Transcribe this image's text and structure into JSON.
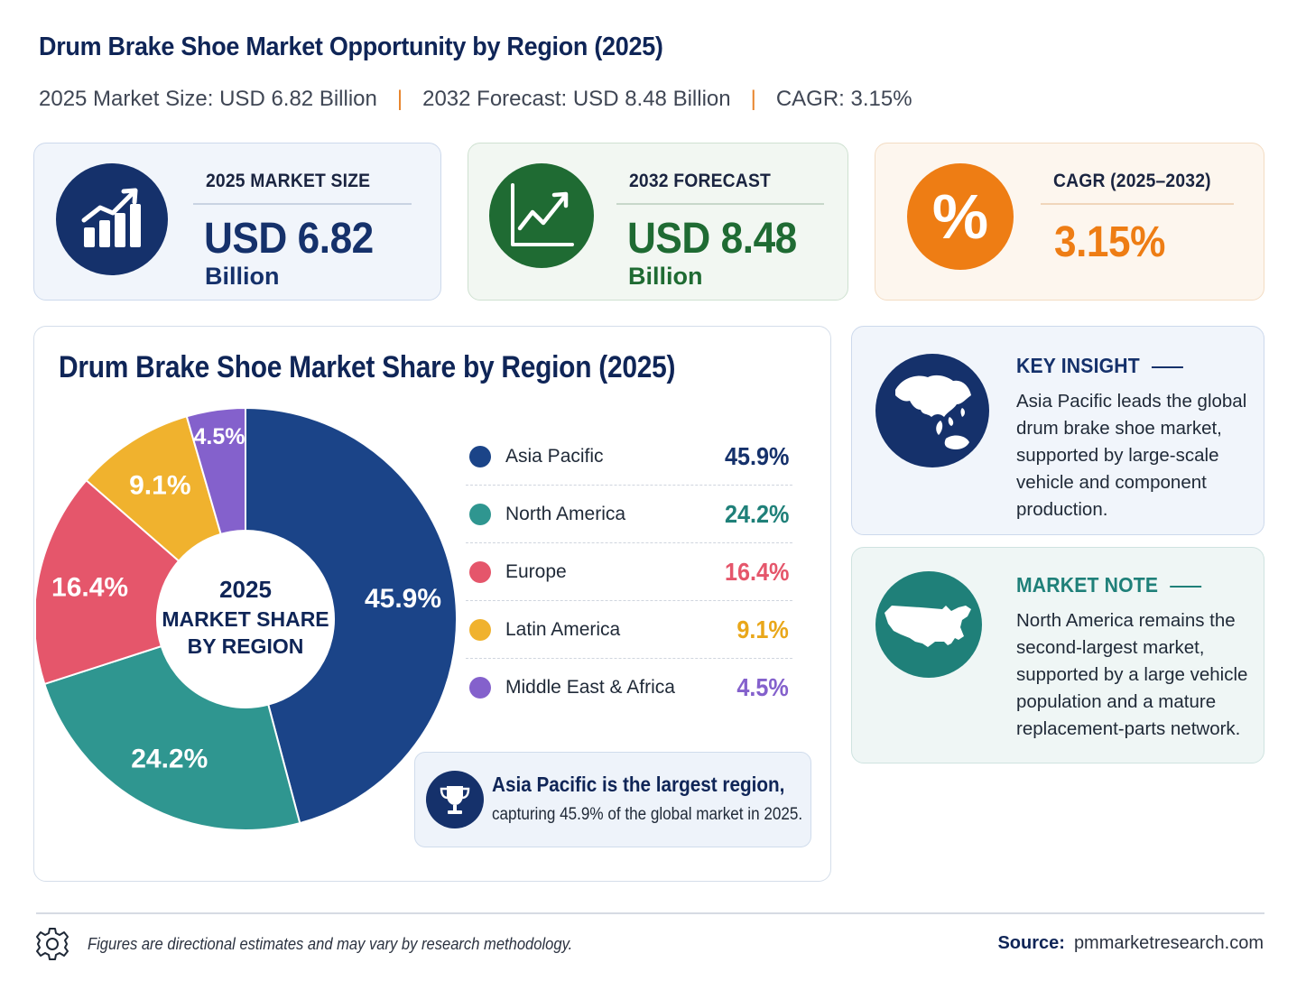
{
  "header": {
    "title": "Drum Brake Shoe Market Opportunity by Region (2025)",
    "stats": [
      "2025 Market Size: USD 6.82 Billion",
      "2032 Forecast: USD 8.48 Billion",
      "CAGR: 3.15%"
    ],
    "separator": "|"
  },
  "kpis": [
    {
      "label": "2025 MARKET SIZE",
      "value": "USD 6.82",
      "unit": "Billion",
      "color": "#15316b",
      "icon": "bar-chart-growth-icon"
    },
    {
      "label": "2032 FORECAST",
      "value": "USD 8.48",
      "unit": "Billion",
      "color": "#1f6b33",
      "icon": "line-chart-growth-icon"
    },
    {
      "label": "CAGR (2025–2032)",
      "value": "3.15%",
      "unit": "",
      "color": "#ee7d14",
      "icon_text": "%",
      "icon": "percent-icon"
    }
  ],
  "chart_data": {
    "type": "pie",
    "title": "Drum Brake Shoe Market Share by Region (2025)",
    "center_label": [
      "2025",
      "MARKET SHARE",
      "BY REGION"
    ],
    "categories": [
      "Asia Pacific",
      "North America",
      "Europe",
      "Latin America",
      "Middle East & Africa"
    ],
    "values": [
      45.9,
      24.2,
      16.4,
      9.1,
      4.5
    ],
    "value_labels": [
      "45.9%",
      "24.2%",
      "16.4%",
      "9.1%",
      "4.5%"
    ],
    "colors": [
      "#1b4488",
      "#2f9690",
      "#e5566b",
      "#f0b22e",
      "#8461cc"
    ],
    "donut": true,
    "legend_position": "right"
  },
  "callout": {
    "headline": "Asia Pacific is the largest region,",
    "text": "capturing 45.9% of the global market in 2025.",
    "icon": "trophy-icon"
  },
  "key_insight": {
    "heading": "KEY INSIGHT",
    "text": "Asia Pacific leads the global drum brake shoe market, supported by large-scale vehicle and component production.",
    "color": "#15316b",
    "icon": "globe-asia-icon"
  },
  "market_note": {
    "heading": "MARKET NOTE",
    "text": "North America remains the second-largest market, supported by a large vehicle population and a mature replacement-parts network.",
    "color": "#1f8079",
    "icon": "usa-map-icon"
  },
  "footer": {
    "note": "Figures are directional estimates and may vary by research methodology.",
    "source_label": "Source:",
    "source_value": "pmmarketresearch.com"
  }
}
